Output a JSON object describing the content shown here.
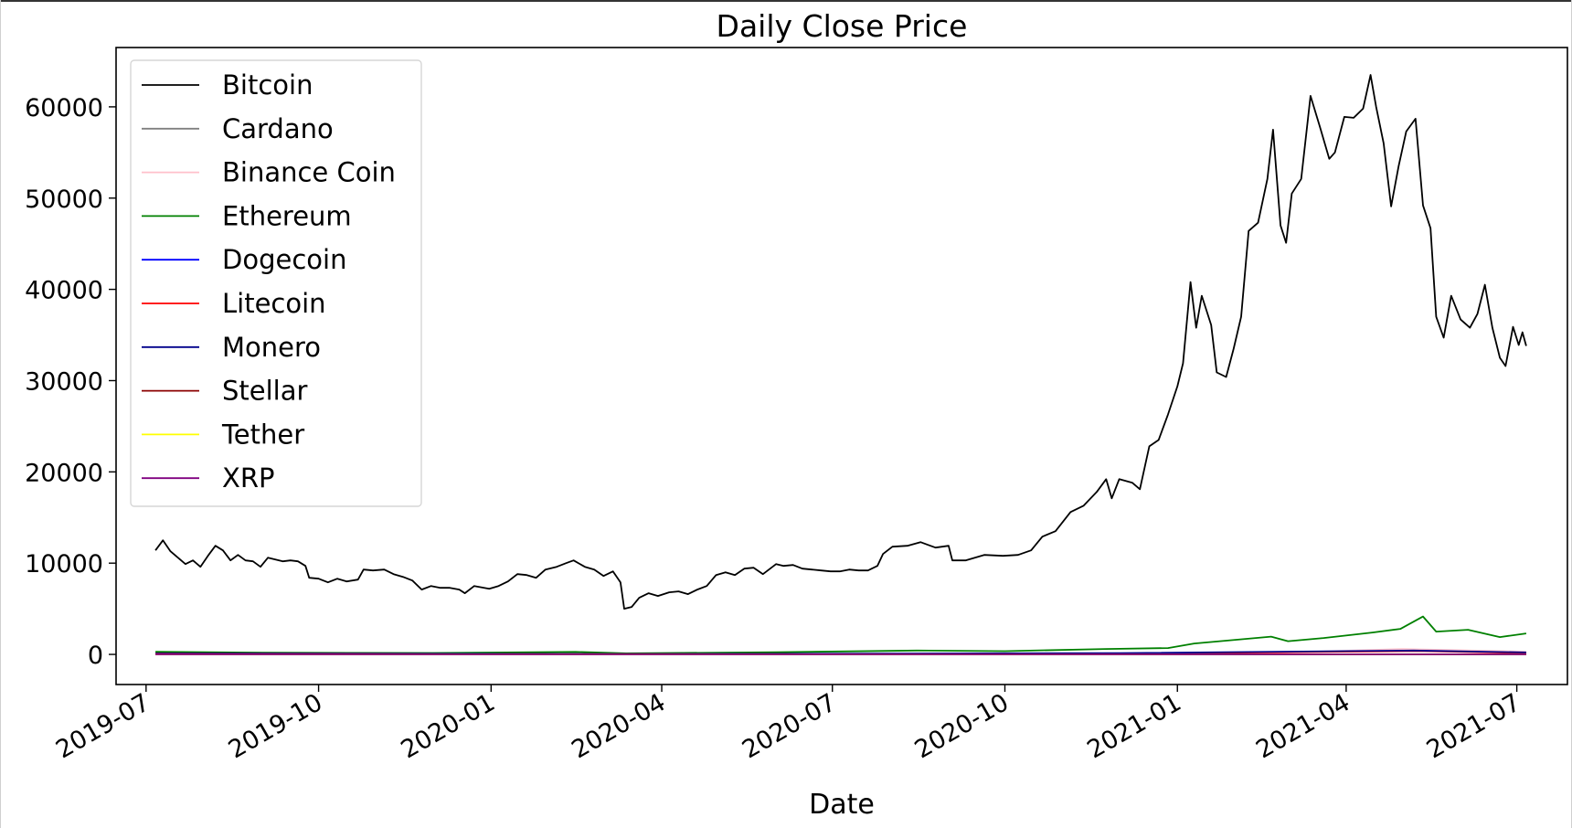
{
  "chart_data": {
    "type": "line",
    "title": "Daily Close Price",
    "xlabel": "Date",
    "ylabel": "",
    "x_range": [
      "2019-06-15",
      "2021-07-28"
    ],
    "ylim": [
      -3300,
      66500
    ],
    "grid": false,
    "legend_placement": "upper-left",
    "x_ticks": [
      "2019-07",
      "2019-10",
      "2020-01",
      "2020-04",
      "2020-07",
      "2020-10",
      "2021-01",
      "2021-04",
      "2021-07"
    ],
    "y_ticks": [
      0,
      10000,
      20000,
      30000,
      40000,
      50000,
      60000
    ],
    "series": [
      {
        "name": "Bitcoin",
        "color": "#000000",
        "points": [
          [
            "2019-07-06",
            11400
          ],
          [
            "2019-07-10",
            12500
          ],
          [
            "2019-07-14",
            11300
          ],
          [
            "2019-07-18",
            10600
          ],
          [
            "2019-07-22",
            9900
          ],
          [
            "2019-07-26",
            10300
          ],
          [
            "2019-07-30",
            9600
          ],
          [
            "2019-08-03",
            10800
          ],
          [
            "2019-08-07",
            11900
          ],
          [
            "2019-08-11",
            11400
          ],
          [
            "2019-08-15",
            10300
          ],
          [
            "2019-08-19",
            10900
          ],
          [
            "2019-08-23",
            10300
          ],
          [
            "2019-08-27",
            10200
          ],
          [
            "2019-08-31",
            9600
          ],
          [
            "2019-09-04",
            10600
          ],
          [
            "2019-09-08",
            10400
          ],
          [
            "2019-09-12",
            10200
          ],
          [
            "2019-09-16",
            10300
          ],
          [
            "2019-09-20",
            10200
          ],
          [
            "2019-09-24",
            9700
          ],
          [
            "2019-09-26",
            8400
          ],
          [
            "2019-10-01",
            8300
          ],
          [
            "2019-10-06",
            7900
          ],
          [
            "2019-10-11",
            8300
          ],
          [
            "2019-10-16",
            8000
          ],
          [
            "2019-10-22",
            8200
          ],
          [
            "2019-10-25",
            9300
          ],
          [
            "2019-10-30",
            9200
          ],
          [
            "2019-11-05",
            9300
          ],
          [
            "2019-11-10",
            8800
          ],
          [
            "2019-11-15",
            8500
          ],
          [
            "2019-11-20",
            8100
          ],
          [
            "2019-11-25",
            7100
          ],
          [
            "2019-11-30",
            7500
          ],
          [
            "2019-12-05",
            7300
          ],
          [
            "2019-12-10",
            7300
          ],
          [
            "2019-12-15",
            7100
          ],
          [
            "2019-12-18",
            6700
          ],
          [
            "2019-12-23",
            7500
          ],
          [
            "2019-12-31",
            7200
          ],
          [
            "2020-01-05",
            7500
          ],
          [
            "2020-01-10",
            8000
          ],
          [
            "2020-01-15",
            8800
          ],
          [
            "2020-01-20",
            8700
          ],
          [
            "2020-01-25",
            8400
          ],
          [
            "2020-01-30",
            9300
          ],
          [
            "2020-02-05",
            9600
          ],
          [
            "2020-02-10",
            10000
          ],
          [
            "2020-02-14",
            10300
          ],
          [
            "2020-02-20",
            9600
          ],
          [
            "2020-02-25",
            9300
          ],
          [
            "2020-03-01",
            8600
          ],
          [
            "2020-03-06",
            9100
          ],
          [
            "2020-03-10",
            7900
          ],
          [
            "2020-03-12",
            5000
          ],
          [
            "2020-03-16",
            5200
          ],
          [
            "2020-03-20",
            6200
          ],
          [
            "2020-03-25",
            6700
          ],
          [
            "2020-03-30",
            6400
          ],
          [
            "2020-04-05",
            6800
          ],
          [
            "2020-04-10",
            6900
          ],
          [
            "2020-04-15",
            6600
          ],
          [
            "2020-04-20",
            7100
          ],
          [
            "2020-04-25",
            7500
          ],
          [
            "2020-04-30",
            8700
          ],
          [
            "2020-05-05",
            9000
          ],
          [
            "2020-05-10",
            8700
          ],
          [
            "2020-05-15",
            9400
          ],
          [
            "2020-05-20",
            9500
          ],
          [
            "2020-05-25",
            8800
          ],
          [
            "2020-06-01",
            9900
          ],
          [
            "2020-06-05",
            9700
          ],
          [
            "2020-06-10",
            9800
          ],
          [
            "2020-06-15",
            9400
          ],
          [
            "2020-06-20",
            9300
          ],
          [
            "2020-06-25",
            9200
          ],
          [
            "2020-06-30",
            9100
          ],
          [
            "2020-07-05",
            9100
          ],
          [
            "2020-07-10",
            9300
          ],
          [
            "2020-07-15",
            9200
          ],
          [
            "2020-07-20",
            9200
          ],
          [
            "2020-07-25",
            9700
          ],
          [
            "2020-07-28",
            11000
          ],
          [
            "2020-08-02",
            11800
          ],
          [
            "2020-08-10",
            11900
          ],
          [
            "2020-08-17",
            12300
          ],
          [
            "2020-08-25",
            11700
          ],
          [
            "2020-09-01",
            11900
          ],
          [
            "2020-09-03",
            10300
          ],
          [
            "2020-09-10",
            10300
          ],
          [
            "2020-09-20",
            10900
          ],
          [
            "2020-09-30",
            10800
          ],
          [
            "2020-10-08",
            10900
          ],
          [
            "2020-10-15",
            11400
          ],
          [
            "2020-10-21",
            12900
          ],
          [
            "2020-10-28",
            13500
          ],
          [
            "2020-11-05",
            15600
          ],
          [
            "2020-11-12",
            16300
          ],
          [
            "2020-11-19",
            17800
          ],
          [
            "2020-11-24",
            19200
          ],
          [
            "2020-11-27",
            17100
          ],
          [
            "2020-12-01",
            19200
          ],
          [
            "2020-12-08",
            18800
          ],
          [
            "2020-12-12",
            18100
          ],
          [
            "2020-12-17",
            22800
          ],
          [
            "2020-12-22",
            23500
          ],
          [
            "2020-12-27",
            26300
          ],
          [
            "2021-01-01",
            29400
          ],
          [
            "2021-01-04",
            31900
          ],
          [
            "2021-01-08",
            40800
          ],
          [
            "2021-01-11",
            35800
          ],
          [
            "2021-01-14",
            39300
          ],
          [
            "2021-01-19",
            36100
          ],
          [
            "2021-01-22",
            30900
          ],
          [
            "2021-01-27",
            30400
          ],
          [
            "2021-01-31",
            33500
          ],
          [
            "2021-02-04",
            37000
          ],
          [
            "2021-02-08",
            46400
          ],
          [
            "2021-02-13",
            47300
          ],
          [
            "2021-02-18",
            52100
          ],
          [
            "2021-02-21",
            57500
          ],
          [
            "2021-02-25",
            47000
          ],
          [
            "2021-02-28",
            45100
          ],
          [
            "2021-03-03",
            50500
          ],
          [
            "2021-03-08",
            52100
          ],
          [
            "2021-03-13",
            61200
          ],
          [
            "2021-03-18",
            57800
          ],
          [
            "2021-03-23",
            54300
          ],
          [
            "2021-03-26",
            55000
          ],
          [
            "2021-03-31",
            58900
          ],
          [
            "2021-04-05",
            58800
          ],
          [
            "2021-04-10",
            59800
          ],
          [
            "2021-04-14",
            63500
          ],
          [
            "2021-04-17",
            60000
          ],
          [
            "2021-04-21",
            56000
          ],
          [
            "2021-04-25",
            49100
          ],
          [
            "2021-04-29",
            53500
          ],
          [
            "2021-05-03",
            57300
          ],
          [
            "2021-05-08",
            58700
          ],
          [
            "2021-05-12",
            49200
          ],
          [
            "2021-05-16",
            46700
          ],
          [
            "2021-05-19",
            37000
          ],
          [
            "2021-05-23",
            34700
          ],
          [
            "2021-05-27",
            39300
          ],
          [
            "2021-06-01",
            36700
          ],
          [
            "2021-06-06",
            35800
          ],
          [
            "2021-06-10",
            37300
          ],
          [
            "2021-06-14",
            40500
          ],
          [
            "2021-06-18",
            35800
          ],
          [
            "2021-06-22",
            32500
          ],
          [
            "2021-06-25",
            31600
          ],
          [
            "2021-06-29",
            35900
          ],
          [
            "2021-07-02",
            33900
          ],
          [
            "2021-07-04",
            35300
          ],
          [
            "2021-07-06",
            33800
          ]
        ]
      },
      {
        "name": "Cardano",
        "color": "#808080",
        "points": [
          [
            "2019-07-06",
            0
          ],
          [
            "2021-07-06",
            1
          ]
        ]
      },
      {
        "name": "Binance Coin",
        "color": "#ffc0cb",
        "points": [
          [
            "2019-07-06",
            30
          ],
          [
            "2021-02-01",
            45
          ],
          [
            "2021-05-01",
            600
          ],
          [
            "2021-07-06",
            300
          ]
        ]
      },
      {
        "name": "Ethereum",
        "color": "#008000",
        "points": [
          [
            "2019-07-06",
            290
          ],
          [
            "2019-09-01",
            180
          ],
          [
            "2019-12-01",
            150
          ],
          [
            "2020-02-15",
            280
          ],
          [
            "2020-03-13",
            110
          ],
          [
            "2020-06-01",
            240
          ],
          [
            "2020-08-15",
            430
          ],
          [
            "2020-10-01",
            360
          ],
          [
            "2020-11-24",
            600
          ],
          [
            "2020-12-27",
            700
          ],
          [
            "2021-01-10",
            1200
          ],
          [
            "2021-02-20",
            1950
          ],
          [
            "2021-03-01",
            1450
          ],
          [
            "2021-03-20",
            1800
          ],
          [
            "2021-04-15",
            2400
          ],
          [
            "2021-04-30",
            2800
          ],
          [
            "2021-05-12",
            4150
          ],
          [
            "2021-05-19",
            2500
          ],
          [
            "2021-06-05",
            2700
          ],
          [
            "2021-06-22",
            1900
          ],
          [
            "2021-07-06",
            2300
          ]
        ]
      },
      {
        "name": "Dogecoin",
        "color": "#0000ff",
        "points": [
          [
            "2019-07-06",
            0
          ],
          [
            "2021-07-06",
            0
          ]
        ]
      },
      {
        "name": "Litecoin",
        "color": "#ff0000",
        "points": [
          [
            "2019-07-06",
            110
          ],
          [
            "2020-03-13",
            40
          ],
          [
            "2020-12-01",
            80
          ],
          [
            "2021-05-10",
            370
          ],
          [
            "2021-07-06",
            150
          ]
        ]
      },
      {
        "name": "Monero",
        "color": "#00008b",
        "points": [
          [
            "2019-07-06",
            90
          ],
          [
            "2020-03-13",
            40
          ],
          [
            "2020-12-01",
            130
          ],
          [
            "2021-05-07",
            430
          ],
          [
            "2021-07-06",
            220
          ]
        ]
      },
      {
        "name": "Stellar",
        "color": "#8b0000",
        "points": [
          [
            "2019-07-06",
            0
          ],
          [
            "2021-07-06",
            0
          ]
        ]
      },
      {
        "name": "Tether",
        "color": "#ffff00",
        "points": [
          [
            "2019-07-06",
            1
          ],
          [
            "2021-07-06",
            1
          ]
        ]
      },
      {
        "name": "XRP",
        "color": "#800080",
        "points": [
          [
            "2019-07-06",
            0
          ],
          [
            "2021-07-06",
            1
          ]
        ]
      }
    ]
  }
}
